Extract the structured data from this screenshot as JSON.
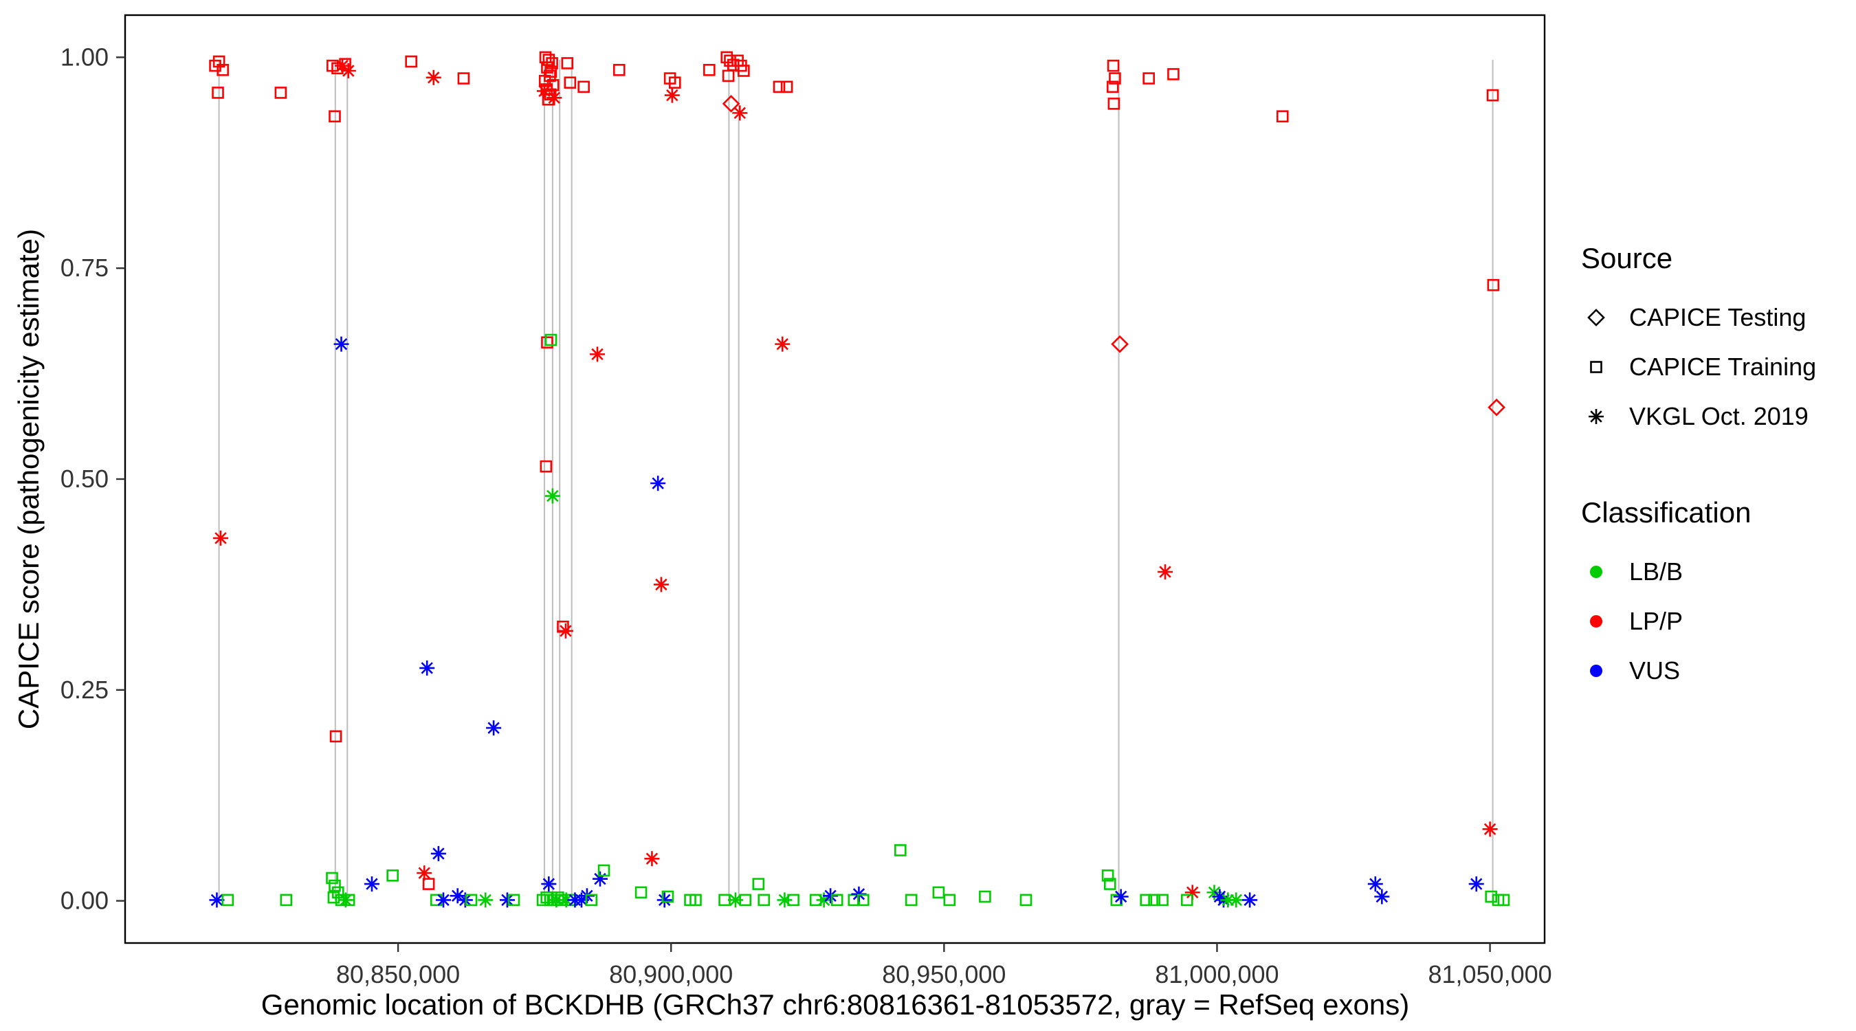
{
  "figure": {
    "x_axis_title": "Genomic location of BCKDHB (GRCh37 chr6:80816361-81053572, gray = RefSeq exons)",
    "y_axis_title": "CAPICE score (pathogenicity estimate)"
  },
  "legend": {
    "source_title": "Source",
    "source_items": [
      {
        "label": "CAPICE Testing",
        "shape": "diamond",
        "code": "test"
      },
      {
        "label": "CAPICE Training",
        "shape": "square",
        "code": "train"
      },
      {
        "label": "VKGL Oct. 2019",
        "shape": "asterisk",
        "code": "vkgl"
      }
    ],
    "classification_title": "Classification",
    "classification_items": [
      {
        "label": "LB/B",
        "color": "#00CC00",
        "code": "g"
      },
      {
        "label": "LP/P",
        "color": "#FF0000",
        "code": "r"
      },
      {
        "label": "VUS",
        "color": "#0000FF",
        "code": "b"
      }
    ]
  },
  "chart_data": {
    "type": "scatter",
    "title": "",
    "xlabel": "Genomic location of BCKDHB (GRCh37 chr6:80816361-81053572, gray = RefSeq exons)",
    "ylabel": "CAPICE score (pathogenicity estimate)",
    "xlim": [
      80800000,
      81060000
    ],
    "ylim": [
      -0.05,
      1.05
    ],
    "grid": false,
    "legend_position": "right",
    "x_tick_values": [
      80850000,
      80900000,
      80950000,
      81000000,
      81050000
    ],
    "x_tick_labels": [
      "80,850,000",
      "80,900,000",
      "80,950,000",
      "81,000,000",
      "81,050,000"
    ],
    "y_tick_values": [
      0.0,
      0.25,
      0.5,
      0.75,
      1.0
    ],
    "y_tick_labels": [
      "0.00",
      "0.25",
      "0.50",
      "0.75",
      "1.00"
    ],
    "exon_line_color": "#bdbdbd",
    "exon_lines_x": [
      80817200,
      80838500,
      80840700,
      80876800,
      80878300,
      80879600,
      80881800,
      80910600,
      80912400,
      80982000,
      81050500
    ],
    "encoding": {
      "point_format": [
        "x",
        "y",
        "source_code",
        "class_code"
      ],
      "source_codes": {
        "test": "CAPICE Testing",
        "train": "CAPICE Training",
        "vkgl": "VKGL Oct. 2019"
      },
      "class_codes": {
        "g": "LB/B",
        "r": "LP/P",
        "b": "VUS"
      }
    },
    "points": [
      [
        80816500,
        0.99,
        "train",
        "r"
      ],
      [
        80817200,
        0.995,
        "train",
        "r"
      ],
      [
        80817900,
        0.985,
        "train",
        "r"
      ],
      [
        80817000,
        0.958,
        "train",
        "r"
      ],
      [
        80817500,
        0.43,
        "vkgl",
        "r"
      ],
      [
        80816800,
        0.001,
        "vkgl",
        "b"
      ],
      [
        80818800,
        0.001,
        "train",
        "g"
      ],
      [
        80828500,
        0.958,
        "train",
        "r"
      ],
      [
        80829500,
        0.001,
        "train",
        "g"
      ],
      [
        80838000,
        0.99,
        "train",
        "r"
      ],
      [
        80838900,
        0.987,
        "train",
        "r"
      ],
      [
        80840300,
        0.992,
        "train",
        "r"
      ],
      [
        80840900,
        0.984,
        "vkgl",
        "r"
      ],
      [
        80839800,
        0.99,
        "vkgl",
        "r"
      ],
      [
        80838400,
        0.93,
        "train",
        "r"
      ],
      [
        80838600,
        0.195,
        "train",
        "r"
      ],
      [
        80839600,
        0.66,
        "vkgl",
        "b"
      ],
      [
        80837900,
        0.027,
        "train",
        "g"
      ],
      [
        80838400,
        0.018,
        "train",
        "g"
      ],
      [
        80839000,
        0.01,
        "train",
        "g"
      ],
      [
        80838200,
        0.004,
        "train",
        "g"
      ],
      [
        80839600,
        0.001,
        "train",
        "g"
      ],
      [
        80840400,
        0.001,
        "vkgl",
        "g"
      ],
      [
        80841000,
        0.001,
        "train",
        "g"
      ],
      [
        80845200,
        0.02,
        "vkgl",
        "b"
      ],
      [
        80849000,
        0.03,
        "train",
        "g"
      ],
      [
        80852400,
        0.995,
        "train",
        "r"
      ],
      [
        80856500,
        0.976,
        "vkgl",
        "r"
      ],
      [
        80855300,
        0.276,
        "vkgl",
        "b"
      ],
      [
        80854800,
        0.033,
        "vkgl",
        "r"
      ],
      [
        80855600,
        0.02,
        "train",
        "r"
      ],
      [
        80857400,
        0.056,
        "vkgl",
        "b"
      ],
      [
        80857000,
        0.001,
        "train",
        "g"
      ],
      [
        80858300,
        0.001,
        "vkgl",
        "b"
      ],
      [
        80862000,
        0.975,
        "train",
        "r"
      ],
      [
        80860900,
        0.006,
        "vkgl",
        "b"
      ],
      [
        80862300,
        0.001,
        "vkgl",
        "b"
      ],
      [
        80863400,
        0.001,
        "train",
        "g"
      ],
      [
        80866000,
        0.001,
        "vkgl",
        "g"
      ],
      [
        80867500,
        0.205,
        "vkgl",
        "b"
      ],
      [
        80870000,
        0.001,
        "vkgl",
        "b"
      ],
      [
        80871200,
        0.001,
        "train",
        "g"
      ],
      [
        80877000,
        1.0,
        "train",
        "r"
      ],
      [
        80877600,
        0.997,
        "train",
        "r"
      ],
      [
        80878200,
        0.993,
        "train",
        "r"
      ],
      [
        80877300,
        0.988,
        "train",
        "r"
      ],
      [
        80878000,
        0.983,
        "train",
        "r"
      ],
      [
        80877800,
        0.978,
        "train",
        "r"
      ],
      [
        80876900,
        0.972,
        "train",
        "r"
      ],
      [
        80878400,
        0.967,
        "train",
        "r"
      ],
      [
        80877200,
        0.962,
        "train",
        "r"
      ],
      [
        80877900,
        0.956,
        "train",
        "r"
      ],
      [
        80877500,
        0.95,
        "train",
        "r"
      ],
      [
        80876800,
        0.96,
        "vkgl",
        "r"
      ],
      [
        80878600,
        0.952,
        "vkgl",
        "r"
      ],
      [
        80881000,
        0.993,
        "train",
        "r"
      ],
      [
        80881500,
        0.97,
        "train",
        "r"
      ],
      [
        80884000,
        0.965,
        "train",
        "r"
      ],
      [
        80877300,
        0.662,
        "train",
        "r"
      ],
      [
        80878000,
        0.665,
        "train",
        "g"
      ],
      [
        80877100,
        0.515,
        "train",
        "r"
      ],
      [
        80878300,
        0.48,
        "vkgl",
        "g"
      ],
      [
        80880200,
        0.325,
        "train",
        "r"
      ],
      [
        80880700,
        0.32,
        "vkgl",
        "r"
      ],
      [
        80886500,
        0.648,
        "vkgl",
        "r"
      ],
      [
        80876500,
        0.001,
        "train",
        "g"
      ],
      [
        80877200,
        0.004,
        "train",
        "g"
      ],
      [
        80877900,
        0.001,
        "train",
        "g"
      ],
      [
        80878600,
        0.001,
        "train",
        "g"
      ],
      [
        80879300,
        0.004,
        "train",
        "g"
      ],
      [
        80880000,
        0.001,
        "train",
        "g"
      ],
      [
        80877600,
        0.02,
        "vkgl",
        "b"
      ],
      [
        80879000,
        0.001,
        "vkgl",
        "g"
      ],
      [
        80880800,
        0.001,
        "vkgl",
        "g"
      ],
      [
        80881600,
        0.001,
        "train",
        "g"
      ],
      [
        80882400,
        0.001,
        "vkgl",
        "b"
      ],
      [
        80883600,
        0.001,
        "vkgl",
        "b"
      ],
      [
        80884600,
        0.006,
        "vkgl",
        "b"
      ],
      [
        80885400,
        0.001,
        "train",
        "g"
      ],
      [
        80887000,
        0.026,
        "vkgl",
        "b"
      ],
      [
        80887700,
        0.036,
        "train",
        "g"
      ],
      [
        80890500,
        0.985,
        "train",
        "r"
      ],
      [
        80894500,
        0.01,
        "train",
        "g"
      ],
      [
        80896500,
        0.05,
        "vkgl",
        "r"
      ],
      [
        80897600,
        0.495,
        "vkgl",
        "b"
      ],
      [
        80898200,
        0.375,
        "vkgl",
        "r"
      ],
      [
        80898800,
        0.001,
        "vkgl",
        "b"
      ],
      [
        80899400,
        0.005,
        "train",
        "g"
      ],
      [
        80899800,
        0.975,
        "train",
        "r"
      ],
      [
        80900700,
        0.97,
        "train",
        "r"
      ],
      [
        80900200,
        0.955,
        "vkgl",
        "r"
      ],
      [
        80903500,
        0.001,
        "train",
        "g"
      ],
      [
        80904500,
        0.001,
        "train",
        "g"
      ],
      [
        80907000,
        0.985,
        "train",
        "r"
      ],
      [
        80910200,
        1.0,
        "train",
        "r"
      ],
      [
        80910800,
        0.996,
        "train",
        "r"
      ],
      [
        80911400,
        0.991,
        "train",
        "r"
      ],
      [
        80912200,
        0.996,
        "train",
        "r"
      ],
      [
        80912800,
        0.99,
        "train",
        "r"
      ],
      [
        80913300,
        0.984,
        "train",
        "r"
      ],
      [
        80910500,
        0.978,
        "train",
        "r"
      ],
      [
        80911000,
        0.945,
        "test",
        "r"
      ],
      [
        80912600,
        0.934,
        "vkgl",
        "r"
      ],
      [
        80909800,
        0.001,
        "train",
        "g"
      ],
      [
        80911800,
        0.001,
        "vkgl",
        "g"
      ],
      [
        80913600,
        0.001,
        "train",
        "g"
      ],
      [
        80916000,
        0.02,
        "train",
        "g"
      ],
      [
        80917000,
        0.001,
        "train",
        "g"
      ],
      [
        80919800,
        0.965,
        "train",
        "r"
      ],
      [
        80921200,
        0.965,
        "train",
        "r"
      ],
      [
        80920400,
        0.66,
        "vkgl",
        "r"
      ],
      [
        80920800,
        0.001,
        "vkgl",
        "g"
      ],
      [
        80922400,
        0.001,
        "train",
        "g"
      ],
      [
        80926500,
        0.001,
        "train",
        "g"
      ],
      [
        80928000,
        0.001,
        "vkgl",
        "g"
      ],
      [
        80929200,
        0.006,
        "vkgl",
        "b"
      ],
      [
        80930400,
        0.001,
        "train",
        "g"
      ],
      [
        80933500,
        0.001,
        "train",
        "g"
      ],
      [
        80934400,
        0.008,
        "vkgl",
        "b"
      ],
      [
        80935200,
        0.001,
        "train",
        "g"
      ],
      [
        80942000,
        0.06,
        "train",
        "g"
      ],
      [
        80944000,
        0.001,
        "train",
        "g"
      ],
      [
        80949000,
        0.01,
        "train",
        "g"
      ],
      [
        80951000,
        0.001,
        "train",
        "g"
      ],
      [
        80957500,
        0.005,
        "train",
        "g"
      ],
      [
        80965000,
        0.001,
        "train",
        "g"
      ],
      [
        80981000,
        0.99,
        "train",
        "r"
      ],
      [
        80981300,
        0.975,
        "train",
        "r"
      ],
      [
        80980900,
        0.965,
        "train",
        "r"
      ],
      [
        80981100,
        0.945,
        "train",
        "r"
      ],
      [
        80982200,
        0.66,
        "test",
        "r"
      ],
      [
        80980000,
        0.03,
        "train",
        "g"
      ],
      [
        80980400,
        0.02,
        "train",
        "g"
      ],
      [
        80981600,
        0.001,
        "train",
        "g"
      ],
      [
        80982400,
        0.005,
        "vkgl",
        "b"
      ],
      [
        80987500,
        0.975,
        "train",
        "r"
      ],
      [
        80987000,
        0.001,
        "train",
        "g"
      ],
      [
        80988500,
        0.001,
        "train",
        "g"
      ],
      [
        80990500,
        0.39,
        "vkgl",
        "r"
      ],
      [
        80990000,
        0.001,
        "train",
        "g"
      ],
      [
        80992000,
        0.98,
        "train",
        "r"
      ],
      [
        80995500,
        0.01,
        "vkgl",
        "r"
      ],
      [
        80994500,
        0.001,
        "train",
        "g"
      ],
      [
        80999500,
        0.01,
        "vkgl",
        "g"
      ],
      [
        81000500,
        0.005,
        "vkgl",
        "b"
      ],
      [
        81001200,
        0.001,
        "vkgl",
        "b"
      ],
      [
        81002000,
        0.001,
        "vkgl",
        "g"
      ],
      [
        81003500,
        0.001,
        "vkgl",
        "g"
      ],
      [
        81006000,
        0.001,
        "vkgl",
        "b"
      ],
      [
        81012000,
        0.93,
        "train",
        "r"
      ],
      [
        81029000,
        0.02,
        "vkgl",
        "b"
      ],
      [
        81030200,
        0.005,
        "vkgl",
        "b"
      ],
      [
        81047500,
        0.02,
        "vkgl",
        "b"
      ],
      [
        81050500,
        0.955,
        "train",
        "r"
      ],
      [
        81050600,
        0.73,
        "train",
        "r"
      ],
      [
        81051200,
        0.585,
        "test",
        "r"
      ],
      [
        81050000,
        0.085,
        "vkgl",
        "r"
      ],
      [
        81050200,
        0.005,
        "train",
        "g"
      ],
      [
        81051500,
        0.001,
        "train",
        "g"
      ],
      [
        81052500,
        0.001,
        "train",
        "g"
      ]
    ]
  }
}
